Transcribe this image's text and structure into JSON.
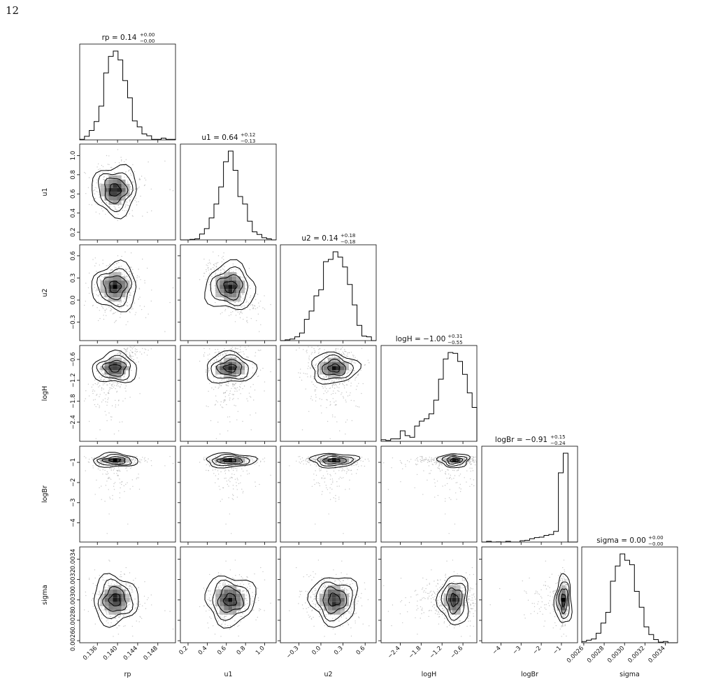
{
  "page": {
    "number": "12"
  },
  "chart_data": {
    "type": "corner",
    "parameters": [
      "rp",
      "u1",
      "u2",
      "logH",
      "logBr",
      "sigma"
    ],
    "axes": [
      {
        "name": "rp",
        "lim": [
          0.1325,
          0.1515
        ],
        "ticks": [
          0.136,
          0.14,
          0.144,
          0.148
        ],
        "tick_labels": [
          "0.136",
          "0.140",
          "0.144",
          "0.148"
        ]
      },
      {
        "name": "u1",
        "lim": [
          0.12,
          1.12
        ],
        "ticks": [
          0.2,
          0.4,
          0.6,
          0.8,
          1.0
        ],
        "tick_labels": [
          "0.2",
          "0.4",
          "0.6",
          "0.8",
          "1.0"
        ]
      },
      {
        "name": "u2",
        "lim": [
          -0.55,
          0.75
        ],
        "ticks": [
          -0.3,
          0.0,
          0.3,
          0.6
        ],
        "tick_labels": [
          "−0.3",
          "0.0",
          "0.3",
          "0.6"
        ]
      },
      {
        "name": "logH",
        "lim": [
          -2.95,
          -0.2
        ],
        "ticks": [
          -2.4,
          -1.8,
          -1.2,
          -0.6
        ],
        "tick_labels": [
          "−2.4",
          "−1.8",
          "−1.2",
          "−0.6"
        ]
      },
      {
        "name": "logBr",
        "lim": [
          -4.95,
          -0.2
        ],
        "ticks": [
          -4,
          -3,
          -2,
          -1
        ],
        "tick_labels": [
          "−4",
          "−3",
          "−2",
          "−1"
        ]
      },
      {
        "name": "sigma",
        "lim": [
          0.00258,
          0.00352
        ],
        "ticks": [
          0.0026,
          0.0028,
          0.003,
          0.0032,
          0.0034
        ],
        "tick_labels": [
          "0.0026",
          "0.0028",
          "0.0030",
          "0.0032",
          "0.0034"
        ]
      }
    ],
    "titles": [
      {
        "name": "rp",
        "text": "rp = 0.14",
        "plus": "+0.00",
        "minus": "−0.00"
      },
      {
        "name": "u1",
        "text": "u1 = 0.64",
        "plus": "+0.12",
        "minus": "−0.13"
      },
      {
        "name": "u2",
        "text": "u2 = 0.14",
        "plus": "+0.18",
        "minus": "−0.18"
      },
      {
        "name": "logH",
        "text": "logH = −1.00",
        "plus": "+0.31",
        "minus": "−0.55"
      },
      {
        "name": "logBr",
        "text": "logBr = −0.91",
        "plus": "+0.15",
        "minus": "−0.24"
      },
      {
        "name": "sigma",
        "text": "sigma = 0.00",
        "plus": "+0.00",
        "minus": "−0.00"
      }
    ],
    "marginals": [
      {
        "name": "rp",
        "mode": 0.1395,
        "sd": 0.0022,
        "skew": "right"
      },
      {
        "name": "u1",
        "mode": 0.64,
        "sd": 0.13,
        "skew": "none"
      },
      {
        "name": "u2",
        "mode": 0.18,
        "sd": 0.16,
        "skew": "none"
      },
      {
        "name": "logH",
        "mode": -0.85,
        "sd": 0.22,
        "skew": "left"
      },
      {
        "name": "logBr",
        "mode": -0.9,
        "sd": 0.12,
        "skew": "left"
      },
      {
        "name": "sigma",
        "mode": 0.003,
        "sd": 0.00012,
        "skew": "none"
      }
    ],
    "contour_levels": [
      "0.5σ",
      "1σ",
      "1.5σ",
      "2σ"
    ],
    "colors": {
      "line": "#000000",
      "points": "#9a9a9a",
      "density_dark": "#222222"
    }
  }
}
